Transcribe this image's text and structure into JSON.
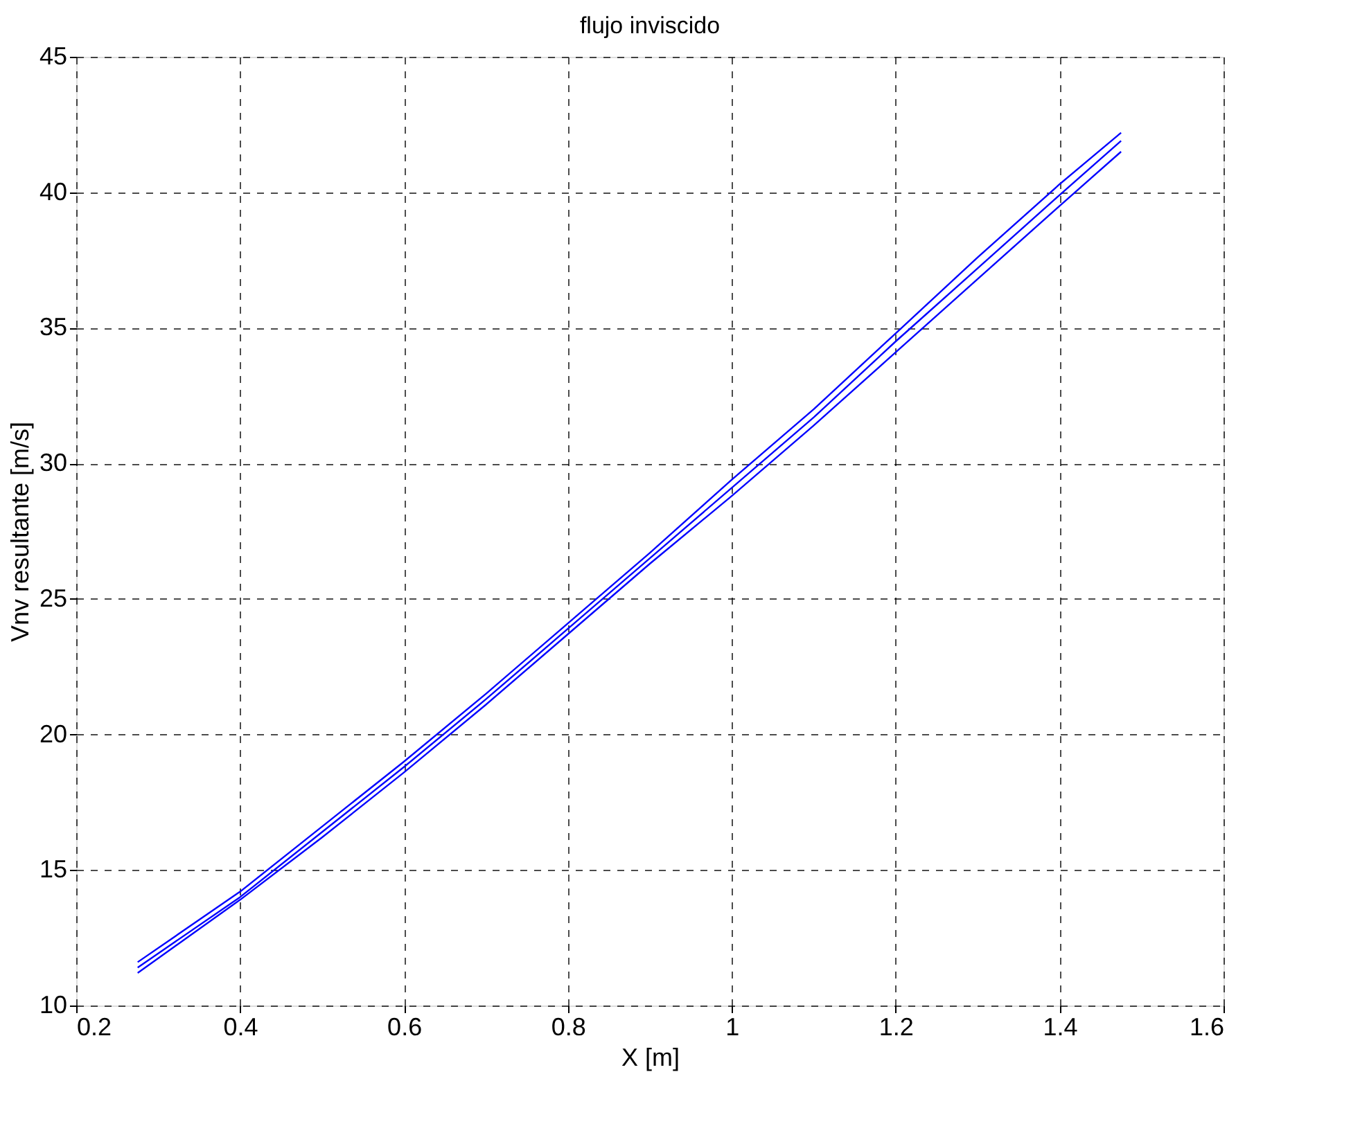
{
  "chart_data": {
    "type": "line",
    "title": "flujo inviscido",
    "xlabel": "X [m]",
    "ylabel": "Vnv resultante [m/s]",
    "x": [
      0.275,
      0.4,
      0.5,
      0.6,
      0.7,
      0.8,
      0.9,
      1.0,
      1.1,
      1.2,
      1.3,
      1.4,
      1.475
    ],
    "series": [
      {
        "color": "#0000ff",
        "values": [
          11.6,
          14.2,
          16.6,
          19.0,
          21.5,
          24.1,
          26.7,
          29.4,
          32.0,
          34.8,
          37.6,
          40.3,
          42.2
        ]
      },
      {
        "color": "#0000ff",
        "values": [
          11.4,
          14.0,
          16.4,
          18.8,
          21.3,
          23.9,
          26.5,
          29.1,
          31.7,
          34.5,
          37.2,
          39.9,
          41.9
        ]
      },
      {
        "color": "#0000ff",
        "values": [
          11.2,
          13.9,
          16.2,
          18.6,
          21.1,
          23.7,
          26.3,
          28.8,
          31.4,
          34.1,
          36.8,
          39.5,
          41.5
        ]
      }
    ],
    "xlim": [
      0.2,
      1.6
    ],
    "xticks": [
      0.2,
      0.4,
      0.6,
      0.8,
      1,
      1.2,
      1.4,
      1.6
    ],
    "ylim": [
      10,
      45
    ],
    "yticks": [
      10,
      15,
      20,
      25,
      30,
      35,
      40,
      45
    ],
    "grid": true,
    "legend": false,
    "marker": "none",
    "line_style": "solid"
  }
}
